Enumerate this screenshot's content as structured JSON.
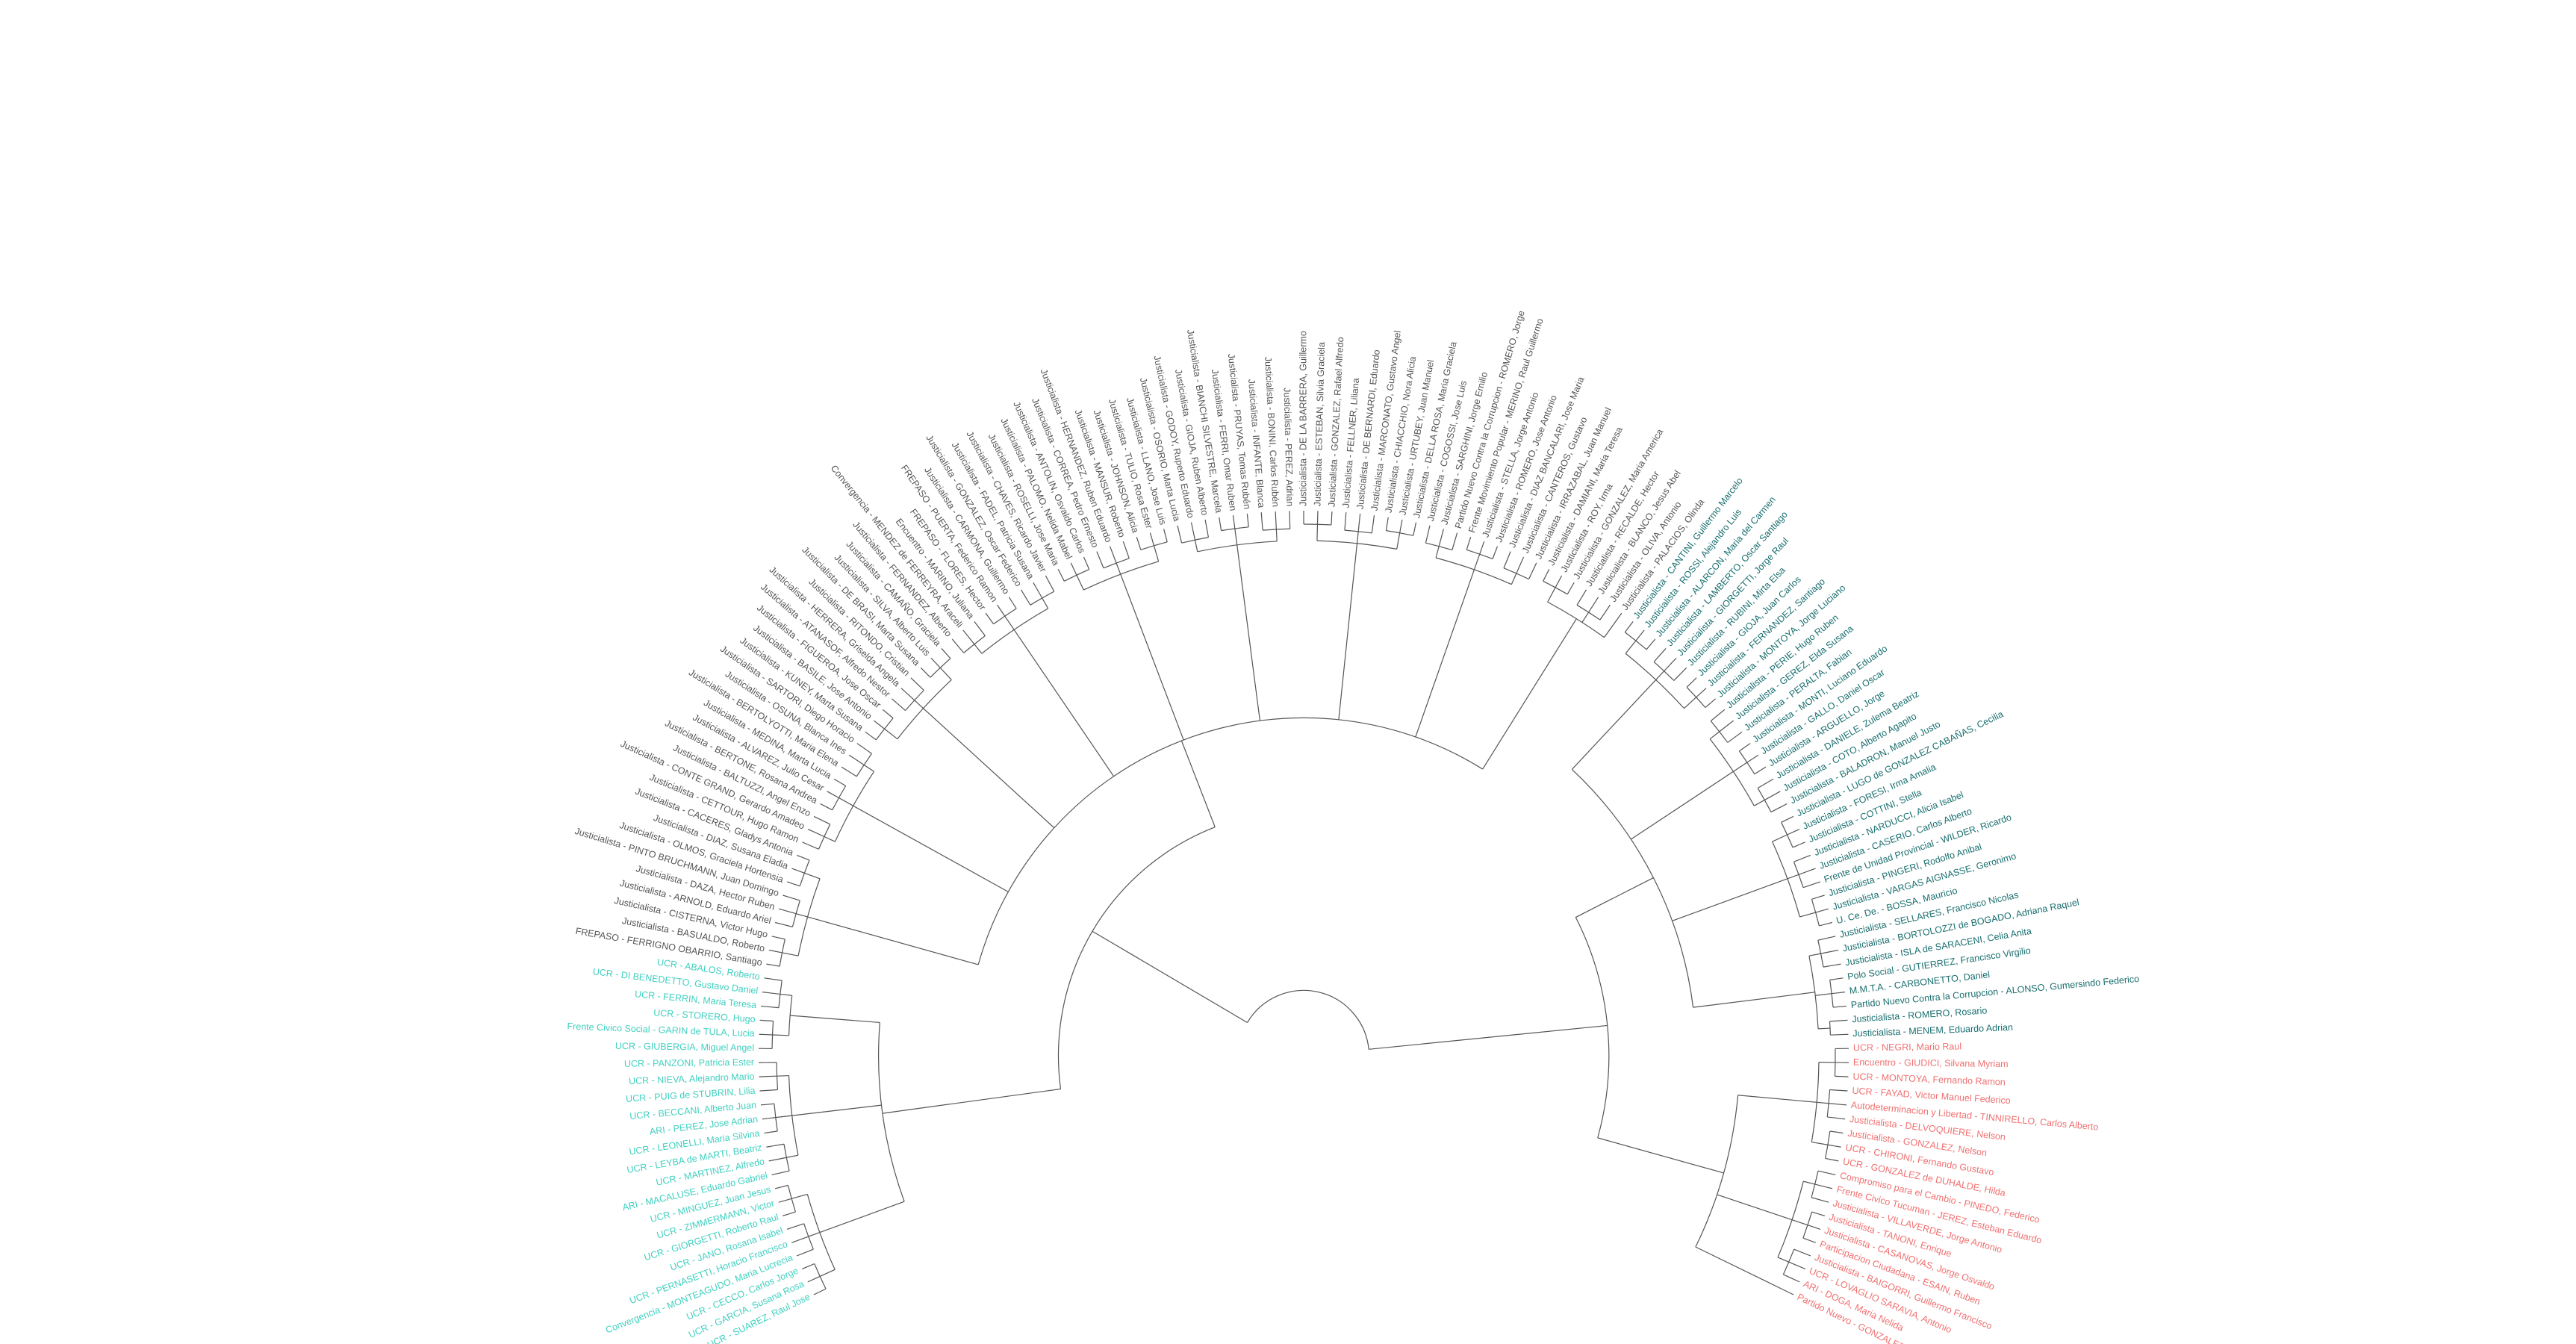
{
  "groups": [
    {
      "color": "#40d0c0",
      "labels": [
        "UCR - SUAREZ, Raul Jose",
        "UCR - GARCIA, Susana Rosa",
        "UCR - CECCO, Carlos Jorge",
        "Convergencia - MONTEAGUDO, Maria Lucrecia",
        "UCR - PERNASETTI, Horacio Francisco",
        "UCR - JANO, Rosana Isabel",
        "UCR - GIORGETTI, Roberto Raul",
        "UCR - ZIMMERMANN, Victor",
        "UCR - MINGUEZ, Juan Jesus",
        "ARI - MACALUSE, Eduardo Gabriel",
        "UCR - MARTINEZ, Alfredo",
        "UCR - LEYBA de MARTI, Beatriz",
        "UCR - LEONELLI, Maria Silvina",
        "ARI - PEREZ, Jose Adrian",
        "UCR - BECCANI, Alberto Juan",
        "UCR - PUIG de STUBRIN, Lilia",
        "UCR - NIEVA, Alejandro Mario",
        "UCR - PANZONI, Patricia Ester",
        "UCR - GIUBERGIA, Miguel Angel",
        "Frente Civico Social - GARIN de TULA, Lucia",
        "UCR - STORERO, Hugo",
        "UCR - FERRIN, Maria Teresa",
        "UCR - DI BENEDETTO, Gustavo Daniel",
        "UCR - ABALOS, Roberto"
      ]
    },
    {
      "color": "#555555",
      "labels": [
        "FREPASO - FERRIGNO OBARRIO, Santiago",
        "Justicialista - BASUALDO, Roberto",
        "Justicialista - CISTERNA, Victor Hugo",
        "Justicialista - ARNOLD, Eduardo Ariel",
        "Justicialista - DAZA, Hector Ruben",
        "Justicialista - PINTO BRUCHMANN, Juan Domingo",
        "Justicialista - OLMOS, Graciela Hortensia",
        "Justicialista - DIAZ, Susana Eladia",
        "Justicialista - CACERES, Gladys Antonia",
        "Justicialista - CETTOUR, Hugo Ramon",
        "Justicialista - CONTE GRAND, Gerardo Amadeo",
        "Justicialista - BALTUZZI, Angel Enzo",
        "Justicialista - BERTONE, Rosana Andrea",
        "Justicialista - ALVAREZ, Julio Cesar",
        "Justicialista - MEDINA, Marta Lucia",
        "Justicialista - BERTOLYOTTI, Maria Elena",
        "Justicialista - OSUNA, Blanca Ines",
        "Justicialista - SARTORI, Diego Horacio",
        "Justicialista - KUNEY, Marta Susana",
        "Justicialista - BASILE, Jose Antonio",
        "Justicialista - FIGUEROA, Jose Oscar",
        "Justicialista - ATANASOF, Alfredo Nestor",
        "Justicialista - HERRERA, Griselda Angela",
        "Justicialista - RITONDO, Cristian",
        "Justicialista - DE BRASI, Marta Susana",
        "Justicialista - SILVA, Alberto Luis",
        "Justicialista - CAMAÑO, Graciela",
        "Justicialista - FERNANDEZ, Alberto",
        "Convergencia - MENDEZ de FERREYRA, Araceli",
        "Encuentro - MARINO, Juliana",
        "FREPASO - FLORES, Hector",
        "FREPASO - PUERTA, Federico Ramon",
        "Justicialista - CARMONA, Guillermo",
        "Justicialista - GONZALEZ, Oscar Federico",
        "Justicialista - FADEL, Patricia Susana",
        "Justicialista - CHAVES, Ricardo Javier",
        "Justicialista - ROSELLI, Jose Maria",
        "Justicialista - PALOMO, Nelida Mabel",
        "Justicialista - ANTOLIN, Osvaldo Carlos",
        "Justicialista - CORREA, Pedro Ernesto",
        "Justicialista - HERNANDEZ, Ruben Eduardo",
        "Justicialista - MANSUR, Roberto",
        "Justicialista - JOHNSON, Alicia",
        "Justicialista - TULIO, Rosa Ester",
        "Justicialista - LLANO, Jose Luis",
        "Justicialista - OSORIO, Marta Lucia",
        "Justicialista - GODOY, Ruperto Eduardo",
        "Justicialista - GIOJA, Ruben Alberto",
        "Justicialista - BIANCHI SILVESTRE, Marcela",
        "Justicialista - FERRI, Omar Ruben",
        "Justicialista - PRUYAS, Tomas Rubén",
        "Justicialista - INFANTE, Blanca",
        "Justicialista - BONINI, Carlos Rubén",
        "Justicialista - PEREZ, Adrian",
        "Justicialista - DE LA BARRERA, Guillermo",
        "Justicialista - ESTEBAN, Silvia Graciela",
        "Justicialista - GONZALEZ, Rafael Alfredo",
        "Justicialista - FELLNER, Liliana",
        "Justicialista - DE BERNARDI, Eduardo",
        "Justicialista - MARCONATO, Gustavo Angel",
        "Justicialista - CHIACCHIO, Nora Alicia",
        "Justicialista - URTUBEY, Juan Manuel",
        "Justicialista - DELLA ROSA, Maria Graciela",
        "Justicialista - COGOSSI, Jose Luis",
        "Justicialista - SARGHINI, Jorge Emilio",
        "Partido Nuevo Contra la Corrupcion - ROMERO, Jorge",
        "Frente Movimiento Popular - MERINO, Raul Guillermo",
        "Justicialista - STELLA, Jorge Antonio",
        "Justicialista - ROMERO, Jose Antonio",
        "Justicialista - DIAZ BANCALARI, Jose Maria",
        "Justicialista - CANTEROS, Gustavo",
        "Justicialista - IRRAZABAL, Juan Manuel",
        "Justicialista - DAMIANI, Maria Teresa",
        "Justicialista - ROY, Irma",
        "Justicialista - GONZALEZ, Maria America",
        "Justicialista - RECALDE, Hector",
        "Justicialista - BLANCO, Jesus Abel",
        "Justicialista - OLIVA, Antonio",
        "Justicialista - PALACIOS, Olinda"
      ]
    },
    {
      "color": "#1a6e6e",
      "labels": [
        "Justicialista - CANTINI, Guillermo Marcelo",
        "Justicialista - ROSSI, Alejandro Luis",
        "Justicialista - ALARCON, Maria del Carmen",
        "Justicialista - LAMBERTO, Oscar Santiago",
        "Justicialista - GIORGETTI, Jorge Raul",
        "Justicialista - RUBINI, Mirta Elsa",
        "Justicialista - GIOJA, Juan Carlos",
        "Justicialista - FERNANDEZ, Santiago",
        "Justicialista - MONTOYA, Jorge Luciano",
        "Justicialista - PERIE, Hugo Ruben",
        "Justicialista - GEREZ, Elda Susana",
        "Justicialista - PERALTA, Fabian",
        "Justicialista - MONTI, Luciano Eduardo",
        "Justicialista - GALLO, Daniel Oscar",
        "Justicialista - ARGUELLO, Jorge",
        "Justicialista - DANIELE, Zulema Beatriz",
        "Justicialista - COTO, Alberto Agapito",
        "Justicialista - BALADRON, Manuel Justo",
        "Justicialista - LUGO de GONZALEZ CABAÑAS, Cecilia",
        "Justicialista - FORESI, Irma Amalia",
        "Justicialista - COTTINI, Stella",
        "Justicialista - NARDUCCI, Alicia Isabel",
        "Justicialista - CASERIO, Carlos Alberto",
        "Frente de Unidad Provincial - WILDER, Ricardo",
        "Justicialista - PINGERI, Rodolfo Anibal",
        "Justicialista - VARGAS AIGNASSE, Geronimo",
        "U. Ce. De. - BOSSA, Mauricio",
        "Justicialista - SELLARES, Francisco Nicolas",
        "Justicialista - BORTOLOZZI de BOGADO, Adriana Raquel",
        "Justicialista - ISLA de SARACENI, Celia Anita",
        "Polo Social - GUTIERREZ, Francisco Virgilio",
        "M.M.T.A. - CARBONETTO, Daniel",
        "Partido Nuevo Contra la Corrupcion - ALONSO, Gumersindo Federico",
        "Justicialista - ROMERO, Rosario",
        "Justicialista - MENEM, Eduardo Adrian"
      ]
    },
    {
      "color": "#f07070",
      "labels": [
        "UCR - NEGRI, Mario Raul",
        "Encuentro - GIUDICI, Silvana Myriam",
        "UCR - MONTOYA, Fernando Ramon",
        "UCR - FAYAD, Victor Manuel Federico",
        "Autodeterminacion y Libertad - TINNIRELLO, Carlos Alberto",
        "Justicialista - DELVOQUIERE, Nelson",
        "Justicialista - GONZALEZ, Nelson",
        "UCR - CHIRONI, Fernando Gustavo",
        "UCR - GONZALEZ de DUHALDE, Hilda",
        "Compromiso para el Cambio - PINEDO, Federico",
        "Frente Civico Tucuman - JEREZ, Esteban Eduardo",
        "Justicialista - VILLAVERDE, Jorge Antonio",
        "Justicialista - TANONI, Enrique",
        "Justicialista - CASANOVAS, Jorge Osvaldo",
        "Participacion Ciudadana - ESAIN, Ruben",
        "Justicialista - BAIGORRI, Guillermo Francisco",
        "UCR - LOVAGLIO SARAVIA, Antonio",
        "ARI - DOGA, Maria Nelida",
        "Partido Nuevo - GONZALEZ, Jose"
      ]
    }
  ]
}
